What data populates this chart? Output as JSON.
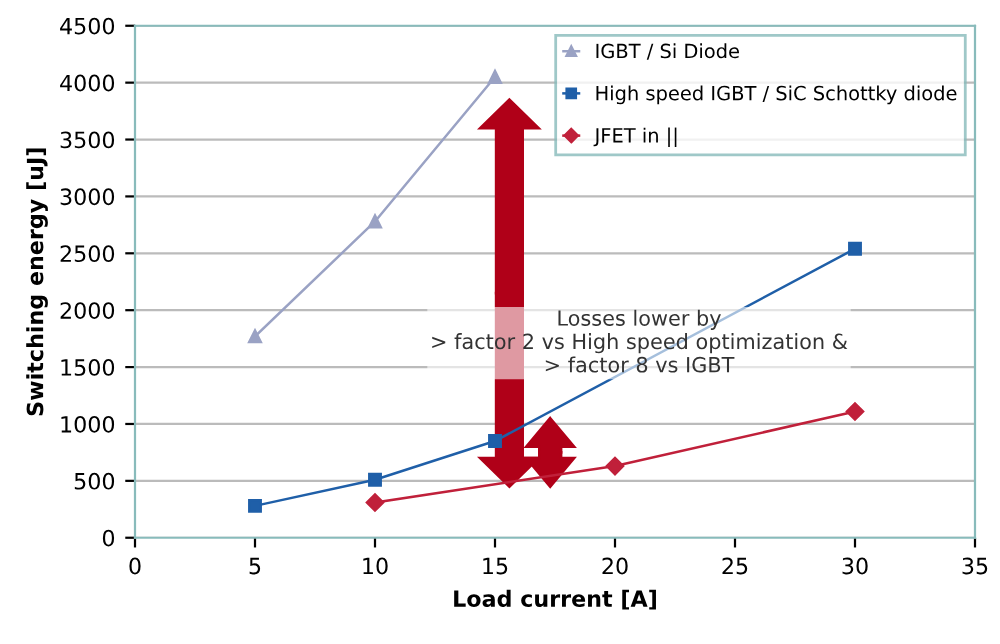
{
  "chart_data": {
    "type": "line",
    "xlabel": "Load current [A]",
    "ylabel": "Switching energy [uJ]",
    "xlim": [
      0,
      35
    ],
    "xticks": [
      0,
      5,
      10,
      15,
      20,
      25,
      30,
      35
    ],
    "ylim": [
      0,
      4500
    ],
    "yticks": [
      0,
      500,
      1000,
      1500,
      2000,
      2500,
      3000,
      3500,
      4000,
      4500
    ],
    "grid": "y",
    "legend": "top right",
    "series": [
      {
        "name": "IGBT / Si Diode",
        "color": "#9aa2c4",
        "marker": "triangle",
        "x": [
          5,
          10,
          15
        ],
        "values": [
          1770,
          2780,
          4050
        ]
      },
      {
        "name": "High speed IGBT / SiC Schottky diode",
        "color": "#1f5fa8",
        "marker": "square",
        "x": [
          5,
          10,
          15,
          30
        ],
        "values": [
          280,
          510,
          850,
          2540
        ]
      },
      {
        "name": "JFET in ||",
        "color": "#c0203a",
        "marker": "diamond",
        "x": [
          10,
          20,
          30
        ],
        "values": [
          310,
          630,
          1110
        ]
      }
    ],
    "annotations": [
      "Losses lower by\n> factor 2 vs High speed optimization &\n> factor 8 vs IGBT"
    ]
  }
}
